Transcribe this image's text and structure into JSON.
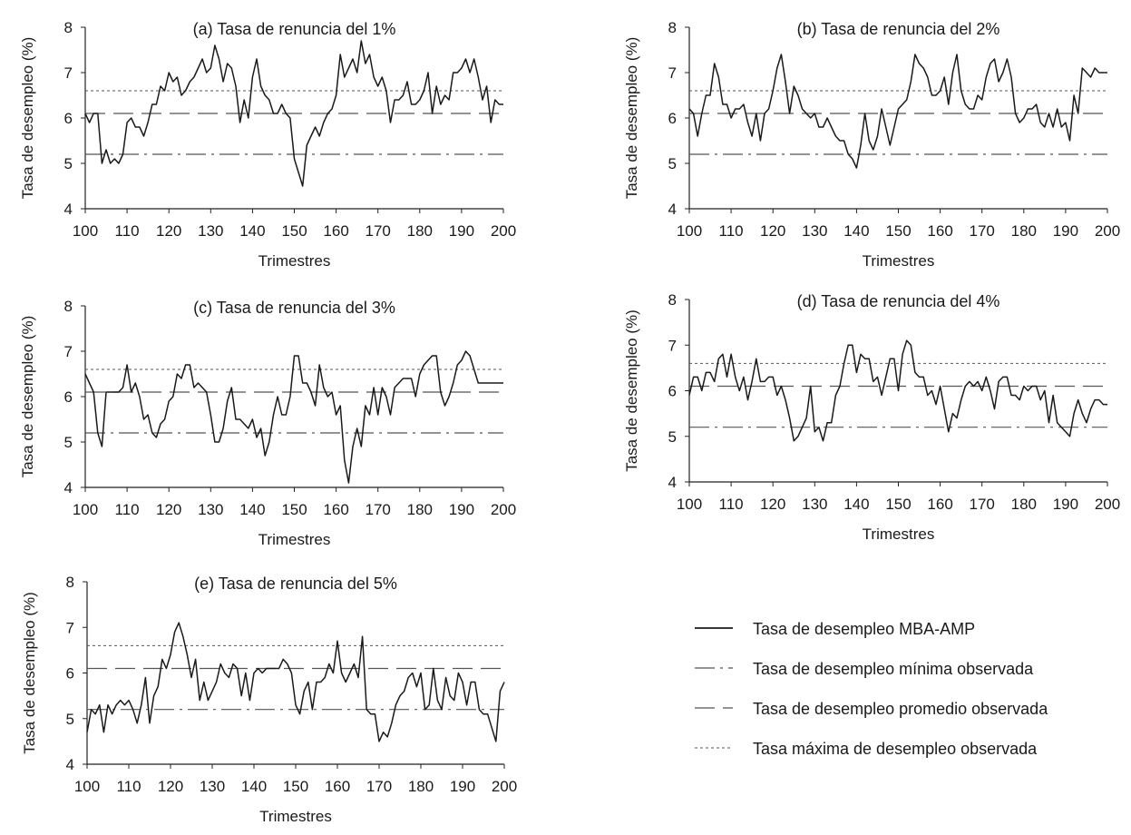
{
  "figure": {
    "legend": [
      {
        "key": "mba",
        "label": "Tasa de desempleo MBA-AMP",
        "style": "solid"
      },
      {
        "key": "min",
        "label": "Tasa de desempleo mínima observada",
        "style": "dashdot"
      },
      {
        "key": "avg",
        "label": "Tasa de desempleo promedio observada",
        "style": "longdash"
      },
      {
        "key": "max",
        "label": "Tasa máxima de desempleo observada",
        "style": "dotted"
      }
    ],
    "colors": {
      "series": "#1a1a1a",
      "reference": "#555555"
    }
  },
  "chart_data": [
    {
      "type": "line",
      "title": "(a) Tasa de renuncia del 1%",
      "xlabel": "Trimestres",
      "ylabel": "Tasa de desempleo (%)",
      "xlim": [
        100,
        200
      ],
      "ylim": [
        4,
        8
      ],
      "xticks": [
        "100",
        "110",
        "120",
        "130",
        "140",
        "150",
        "160",
        "170",
        "180",
        "190",
        "200"
      ],
      "yticks": [
        "4",
        "5",
        "6",
        "7",
        "8"
      ],
      "reference_lines": {
        "min": 5.2,
        "avg": 6.1,
        "max": 6.6
      },
      "series": [
        {
          "values": [
            6.1,
            5.9,
            6.1,
            6.1,
            5.0,
            5.3,
            5.0,
            5.1,
            5.0,
            5.2,
            5.9,
            6.0,
            5.8,
            5.8,
            5.6,
            5.9,
            6.3,
            6.3,
            6.7,
            6.6,
            7.0,
            6.8,
            6.9,
            6.5,
            6.6,
            6.8,
            6.9,
            7.1,
            7.3,
            7.0,
            7.1,
            7.6,
            7.3,
            6.8,
            7.2,
            7.1,
            6.7,
            5.9,
            6.4,
            6.0,
            6.9,
            7.3,
            6.7,
            6.5,
            6.4,
            6.1,
            6.1,
            6.3,
            6.1,
            6.0,
            5.1,
            4.8,
            4.5,
            5.4,
            5.6,
            5.8,
            5.6,
            5.9,
            6.1,
            6.2,
            6.5,
            7.4,
            6.9,
            7.1,
            7.3,
            7.0,
            7.7,
            7.2,
            7.4,
            6.9,
            6.7,
            6.9,
            6.6,
            5.9,
            6.4,
            6.4,
            6.5,
            6.8,
            6.3,
            6.3,
            6.4,
            6.6,
            7.0,
            6.1,
            6.7,
            6.3,
            6.5,
            6.4,
            7.0,
            7.0,
            7.1,
            7.3,
            7.0,
            7.3,
            6.9,
            6.4,
            6.7,
            5.9,
            6.4,
            6.3,
            6.3
          ]
        }
      ]
    },
    {
      "type": "line",
      "title": "(b) Tasa de renuncia del 2%",
      "xlabel": "Trimestres",
      "ylabel": "Tasa de desempleo (%)",
      "xlim": [
        100,
        200
      ],
      "ylim": [
        4,
        8
      ],
      "xticks": [
        "100",
        "110",
        "120",
        "130",
        "140",
        "150",
        "160",
        "170",
        "180",
        "190",
        "200"
      ],
      "yticks": [
        "4",
        "5",
        "6",
        "7",
        "8"
      ],
      "reference_lines": {
        "min": 5.2,
        "avg": 6.1,
        "max": 6.6
      },
      "series": [
        {
          "values": [
            6.2,
            6.1,
            5.6,
            6.1,
            6.5,
            6.5,
            7.2,
            6.9,
            6.3,
            6.3,
            6.0,
            6.2,
            6.2,
            6.3,
            5.9,
            5.6,
            6.1,
            5.5,
            6.1,
            6.2,
            6.6,
            7.1,
            7.4,
            6.8,
            6.1,
            6.7,
            6.5,
            6.2,
            6.1,
            6.0,
            6.1,
            5.8,
            5.8,
            6.0,
            5.8,
            5.6,
            5.5,
            5.5,
            5.2,
            5.1,
            4.9,
            5.4,
            6.1,
            5.5,
            5.3,
            5.6,
            6.2,
            5.8,
            5.4,
            5.8,
            6.2,
            6.3,
            6.4,
            6.8,
            7.4,
            7.2,
            7.1,
            6.9,
            6.5,
            6.5,
            6.6,
            6.9,
            6.3,
            7.0,
            7.4,
            6.6,
            6.3,
            6.2,
            6.2,
            6.5,
            6.4,
            6.9,
            7.2,
            7.3,
            6.8,
            7.0,
            7.3,
            6.9,
            6.1,
            5.9,
            6.0,
            6.2,
            6.2,
            6.3,
            5.9,
            5.8,
            6.1,
            5.8,
            6.2,
            5.8,
            5.9,
            5.5,
            6.5,
            6.1,
            7.1,
            7.0,
            6.9,
            7.1,
            7.0,
            7.0,
            7.0
          ]
        }
      ]
    },
    {
      "type": "line",
      "title": "(c) Tasa de renuncia del 3%",
      "xlabel": "Trimestres",
      "ylabel": "Tasa de desempleo (%)",
      "xlim": [
        100,
        200
      ],
      "ylim": [
        4,
        8
      ],
      "xticks": [
        "100",
        "110",
        "120",
        "130",
        "140",
        "150",
        "160",
        "170",
        "180",
        "190",
        "200"
      ],
      "yticks": [
        "4",
        "5",
        "6",
        "7",
        "8"
      ],
      "reference_lines": {
        "min": 5.2,
        "avg": 6.1,
        "max": 6.6
      },
      "series": [
        {
          "values": [
            6.5,
            6.3,
            6.1,
            5.2,
            4.9,
            6.1,
            6.1,
            6.1,
            6.1,
            6.2,
            6.7,
            6.1,
            6.3,
            6.0,
            5.5,
            5.6,
            5.2,
            5.1,
            5.4,
            5.5,
            5.9,
            6.0,
            6.5,
            6.4,
            6.7,
            6.7,
            6.2,
            6.3,
            6.2,
            6.1,
            5.6,
            5.0,
            5.0,
            5.3,
            5.9,
            6.2,
            5.5,
            5.5,
            5.4,
            5.3,
            5.5,
            5.1,
            5.3,
            4.7,
            5.0,
            5.6,
            6.0,
            5.6,
            5.6,
            6.0,
            6.9,
            6.9,
            6.3,
            6.3,
            6.1,
            5.8,
            6.7,
            6.2,
            6.0,
            6.1,
            5.6,
            5.8,
            4.6,
            4.1,
            4.9,
            5.3,
            4.9,
            5.8,
            5.6,
            6.2,
            5.6,
            6.2,
            6.0,
            5.6,
            6.2,
            6.3,
            6.4,
            6.4,
            6.4,
            6.0,
            6.5,
            6.7,
            6.8,
            6.9,
            6.9,
            6.1,
            5.8,
            6.0,
            6.3,
            6.7,
            6.8,
            7.0,
            6.9,
            6.6,
            6.3,
            6.3,
            6.3,
            6.3,
            6.3,
            6.3,
            6.3
          ]
        }
      ]
    },
    {
      "type": "line",
      "title": "(d) Tasa de renuncia del 4%",
      "xlabel": "Trimestres",
      "ylabel": "Tasa de desempleo (%)",
      "xlim": [
        100,
        200
      ],
      "ylim": [
        4,
        8
      ],
      "xticks": [
        "100",
        "110",
        "120",
        "130",
        "140",
        "150",
        "160",
        "170",
        "180",
        "190",
        "200"
      ],
      "yticks": [
        "4",
        "5",
        "6",
        "7",
        "8"
      ],
      "reference_lines": {
        "min": 5.2,
        "avg": 6.1,
        "max": 6.6
      },
      "series": [
        {
          "values": [
            5.9,
            6.3,
            6.3,
            6.0,
            6.4,
            6.4,
            6.2,
            6.7,
            6.8,
            6.3,
            6.8,
            6.3,
            6.0,
            6.3,
            5.8,
            6.2,
            6.7,
            6.2,
            6.2,
            6.3,
            6.3,
            5.9,
            6.1,
            5.8,
            5.4,
            4.9,
            5.0,
            5.2,
            5.4,
            6.1,
            5.1,
            5.2,
            4.9,
            5.3,
            5.3,
            5.9,
            6.1,
            6.6,
            7.0,
            7.0,
            6.4,
            6.8,
            6.7,
            6.7,
            6.2,
            6.3,
            5.9,
            6.3,
            6.7,
            6.7,
            6.0,
            6.8,
            7.1,
            7.0,
            6.4,
            6.3,
            6.3,
            5.9,
            6.0,
            5.7,
            6.1,
            5.6,
            5.1,
            5.5,
            5.4,
            5.8,
            6.1,
            6.2,
            6.1,
            6.2,
            6.0,
            6.3,
            6.0,
            5.6,
            6.2,
            6.3,
            6.3,
            5.9,
            5.9,
            5.8,
            6.1,
            6.0,
            6.1,
            6.1,
            5.8,
            6.0,
            5.3,
            5.9,
            5.3,
            5.2,
            5.1,
            5.0,
            5.5,
            5.8,
            5.5,
            5.3,
            5.6,
            5.8,
            5.8,
            5.7,
            5.7
          ]
        }
      ]
    },
    {
      "type": "line",
      "title": "(e) Tasa de renuncia del 5%",
      "xlabel": "Trimestres",
      "ylabel": "Tasa de desempleo (%)",
      "xlim": [
        100,
        200
      ],
      "ylim": [
        4,
        8
      ],
      "xticks": [
        "100",
        "110",
        "120",
        "130",
        "140",
        "150",
        "160",
        "170",
        "180",
        "190",
        "200"
      ],
      "yticks": [
        "4",
        "5",
        "6",
        "7",
        "8"
      ],
      "reference_lines": {
        "min": 5.2,
        "avg": 6.1,
        "max": 6.6
      },
      "series": [
        {
          "values": [
            4.7,
            5.2,
            5.1,
            5.3,
            4.7,
            5.3,
            5.1,
            5.3,
            5.4,
            5.3,
            5.4,
            5.2,
            4.9,
            5.3,
            5.9,
            4.9,
            5.5,
            5.7,
            6.3,
            6.1,
            6.4,
            6.9,
            7.1,
            6.8,
            6.4,
            5.9,
            6.3,
            5.4,
            5.8,
            5.4,
            5.6,
            5.8,
            6.2,
            6.0,
            5.9,
            6.2,
            6.1,
            5.5,
            6.0,
            5.4,
            6.0,
            6.1,
            6.0,
            6.1,
            6.1,
            6.1,
            6.1,
            6.3,
            6.2,
            6.0,
            5.3,
            5.1,
            5.6,
            5.8,
            5.2,
            5.8,
            5.8,
            5.9,
            6.2,
            6.0,
            6.7,
            6.0,
            5.8,
            6.0,
            6.2,
            5.9,
            6.8,
            5.2,
            5.1,
            5.1,
            4.5,
            4.7,
            4.6,
            4.9,
            5.3,
            5.5,
            5.6,
            5.9,
            6.0,
            5.7,
            6.0,
            5.2,
            5.3,
            6.1,
            5.4,
            5.2,
            5.9,
            5.5,
            5.4,
            6.0,
            5.8,
            5.3,
            5.8,
            5.8,
            5.2,
            5.1,
            5.1,
            4.8,
            4.5,
            5.6,
            5.8
          ]
        }
      ]
    }
  ]
}
